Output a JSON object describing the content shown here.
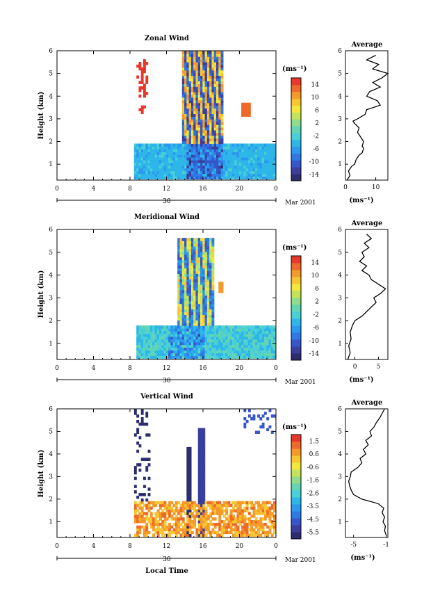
{
  "figure": {
    "x_axis_label": "Local Time",
    "date_label": "Mar 2001",
    "day_label": "30",
    "y_axis_label": "Height (km)"
  },
  "chart_data": [
    {
      "type": "heatmap",
      "title": "Zonal Wind",
      "xlabel": "",
      "ylabel": "Height (km)",
      "xlim": [
        0,
        24
      ],
      "ylim": [
        0.3,
        6
      ],
      "xticks": [
        "0",
        "4",
        "8",
        "12",
        "16",
        "20",
        "0"
      ],
      "yticks": [
        "1",
        "2",
        "3",
        "4",
        "5",
        "6"
      ],
      "colorbar": {
        "unit": "(ms⁻¹)",
        "min": -15,
        "max": 15,
        "ticks": [
          "14",
          "10",
          "6",
          "2",
          "-2",
          "-6",
          "-10",
          "-14"
        ]
      },
      "field_hint": "zonal",
      "avg_profile": {
        "title": "Average",
        "xlabel": "(ms⁻¹)",
        "xlim": [
          0,
          14
        ],
        "xticks": [
          "0",
          "10"
        ],
        "height": [
          0.3,
          0.5,
          0.7,
          0.9,
          1.0,
          1.2,
          1.4,
          1.5,
          1.7,
          1.8,
          2.0,
          2.2,
          2.4,
          2.6,
          2.8,
          2.9,
          3.0,
          3.2,
          3.4,
          3.6,
          3.8,
          4.0,
          4.2,
          4.4,
          4.6,
          4.8,
          5.0,
          5.2,
          5.4,
          5.6,
          5.8
        ],
        "value": [
          0.5,
          1.5,
          1.0,
          2.0,
          3.0,
          3.5,
          4.5,
          5.5,
          6.0,
          5.5,
          6.0,
          5.0,
          4.0,
          4.5,
          3.0,
          2.5,
          4.0,
          6.5,
          7.0,
          11.5,
          10.5,
          7.0,
          8.0,
          11.5,
          9.0,
          12.0,
          14.0,
          9.0,
          11.0,
          7.0,
          10.0
        ]
      }
    },
    {
      "type": "heatmap",
      "title": "Meridional Wind",
      "xlabel": "",
      "ylabel": "Height (km)",
      "xlim": [
        0,
        24
      ],
      "ylim": [
        0.3,
        6
      ],
      "xticks": [
        "0",
        "4",
        "8",
        "12",
        "16",
        "20",
        "0"
      ],
      "yticks": [
        "1",
        "2",
        "3",
        "4",
        "5",
        "6"
      ],
      "colorbar": {
        "unit": "(ms⁻¹)",
        "min": -15,
        "max": 15,
        "ticks": [
          "14",
          "10",
          "6",
          "2",
          "-2",
          "-6",
          "-10",
          "-14"
        ]
      },
      "field_hint": "meridional",
      "avg_profile": {
        "title": "Average",
        "xlabel": "(ms⁻¹)",
        "xlim": [
          -2,
          7
        ],
        "xticks": [
          "0",
          "5"
        ],
        "height": [
          0.3,
          0.6,
          0.9,
          1.2,
          1.5,
          1.8,
          2.0,
          2.2,
          2.4,
          2.6,
          2.8,
          3.0,
          3.2,
          3.4,
          3.6,
          3.8,
          4.0,
          4.2,
          4.4,
          4.6,
          4.8,
          5.0,
          5.2,
          5.4,
          5.6,
          5.8
        ],
        "value": [
          -1.5,
          -1.0,
          -1.3,
          -0.8,
          -1.0,
          -0.5,
          0.0,
          1.5,
          2.5,
          3.5,
          4.5,
          4.0,
          5.5,
          6.5,
          5.0,
          3.5,
          3.0,
          1.5,
          2.5,
          1.0,
          2.0,
          1.5,
          3.0,
          2.0,
          3.5,
          2.5
        ]
      }
    },
    {
      "type": "heatmap",
      "title": "Vertical Wind",
      "xlabel": "Local Time",
      "ylabel": "Height (km)",
      "xlim": [
        0,
        24
      ],
      "ylim": [
        0.3,
        6
      ],
      "xticks": [
        "0",
        "4",
        "8",
        "12",
        "16",
        "20",
        "0"
      ],
      "yticks": [
        "1",
        "2",
        "3",
        "4",
        "5",
        "6"
      ],
      "colorbar": {
        "unit": "(ms⁻¹)",
        "min": -6,
        "max": 2,
        "ticks": [
          "1.5",
          "0.6",
          "-0.6",
          "-1.6",
          "-2.6",
          "-3.5",
          "-4.5",
          "-5.5"
        ]
      },
      "field_hint": "vertical",
      "avg_profile": {
        "title": "Average",
        "xlabel": "(ms⁻¹)",
        "xlim": [
          -6,
          -0.8
        ],
        "xticks": [
          "-5",
          "-1"
        ],
        "height": [
          0.4,
          0.6,
          0.8,
          1.0,
          1.2,
          1.4,
          1.6,
          1.8,
          2.0,
          2.2,
          2.4,
          2.6,
          2.8,
          3.0,
          3.2,
          3.4,
          3.6,
          3.8,
          4.0,
          4.2,
          4.4,
          4.6,
          4.8,
          5.0,
          5.2,
          5.4,
          5.6,
          5.8,
          6.0
        ],
        "value": [
          -1.0,
          -1.2,
          -1.1,
          -1.4,
          -1.2,
          -1.5,
          -1.3,
          -2.0,
          -4.0,
          -5.0,
          -5.3,
          -5.5,
          -5.6,
          -5.4,
          -5.3,
          -4.5,
          -4.0,
          -4.2,
          -3.5,
          -3.8,
          -3.2,
          -3.5,
          -2.8,
          -3.0,
          -2.5,
          -2.2,
          -1.8,
          -1.5,
          -1.2
        ]
      }
    }
  ]
}
